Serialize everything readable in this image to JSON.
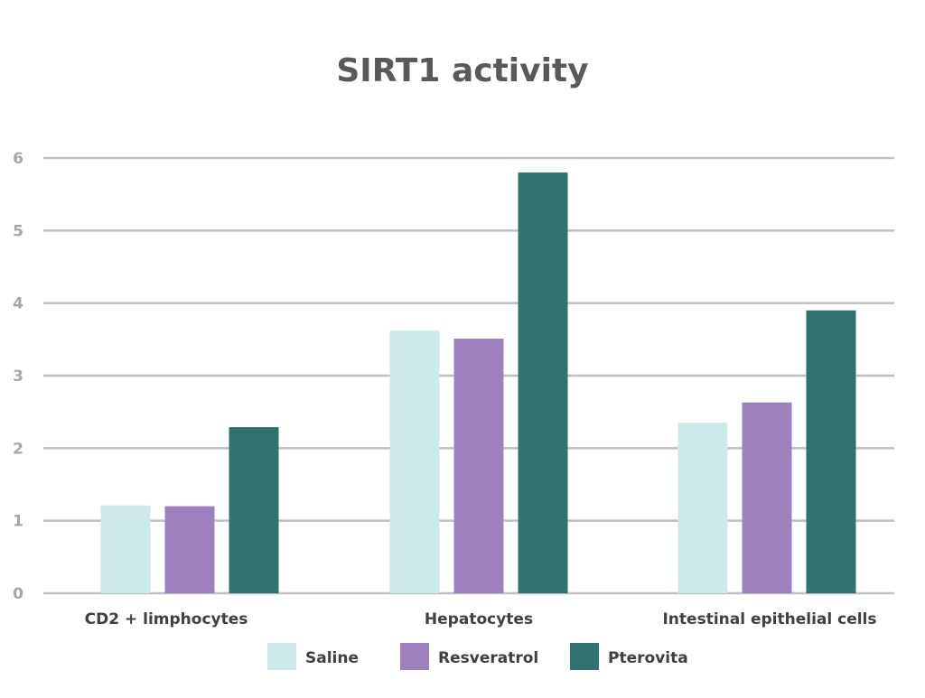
{
  "chart_data": {
    "type": "bar",
    "title": "SIRT1 activity",
    "xlabel": "",
    "ylabel": "",
    "ylim": [
      0,
      6
    ],
    "yticks": [
      "0",
      "1",
      "2",
      "3",
      "4",
      "5",
      "6"
    ],
    "grid": true,
    "legend_position": "bottom",
    "categories": [
      "CD2 + limphocytes",
      "Hepatocytes",
      "Intestinal epithelial cells"
    ],
    "series": [
      {
        "name": "Saline",
        "color": "#cce9ea",
        "values": [
          1.21,
          3.62,
          2.35
        ]
      },
      {
        "name": "Resveratrol",
        "color": "#9e80be",
        "values": [
          1.2,
          3.51,
          2.63
        ]
      },
      {
        "name": "Pterovita",
        "color": "#2e7370",
        "values": [
          2.29,
          5.8,
          3.9
        ]
      }
    ]
  }
}
